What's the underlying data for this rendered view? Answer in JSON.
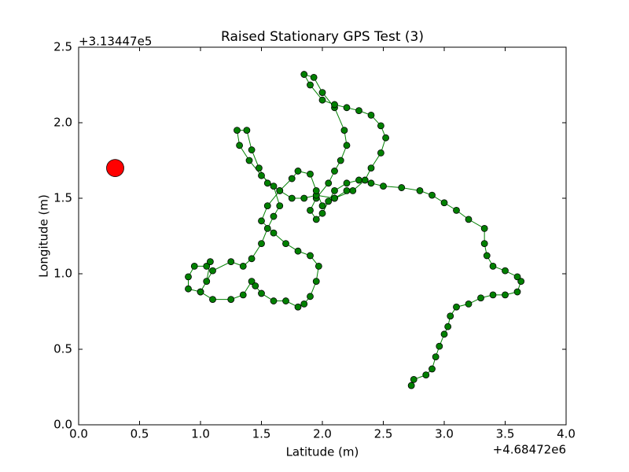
{
  "chart_data": {
    "type": "scatter",
    "title": "Raised Stationary GPS Test (3)",
    "x_label": "Latitude (m)",
    "y_label": "Longitude (m)",
    "x_offset_label": "+4.68472e6",
    "y_offset_label": "+3.13447e5",
    "xlim": [
      0,
      4
    ],
    "ylim": [
      0,
      2.5
    ],
    "xticks": [
      {
        "value": 0,
        "label": "0.0"
      },
      0.5,
      {
        "value": 1,
        "label": "1.0"
      },
      1.5,
      {
        "value": 2,
        "label": "2.0"
      },
      2.5,
      {
        "value": 3,
        "label": "3.0"
      },
      3.5,
      {
        "value": 4,
        "label": "4.0"
      }
    ],
    "yticks": [
      {
        "value": 0,
        "label": "0.0"
      },
      0.5,
      {
        "value": 1,
        "label": "1.0"
      },
      1.5,
      {
        "value": 2,
        "label": "2.0"
      },
      2.5
    ],
    "grid": false,
    "series": [
      {
        "color": "#008000",
        "line": true,
        "x": [
          2.73,
          2.75,
          2.85,
          2.9,
          2.93,
          2.96,
          3.0,
          3.03,
          3.05,
          3.1,
          3.2,
          3.3,
          3.4,
          3.5,
          3.6,
          3.63,
          3.6,
          3.5,
          3.4,
          3.35,
          3.33,
          3.33,
          3.2,
          3.1,
          3.0,
          2.9,
          2.8,
          2.65,
          2.5,
          2.4,
          2.3,
          2.2,
          2.1,
          2.05,
          2.0,
          1.95,
          1.9,
          1.95,
          2.05,
          2.1,
          2.15,
          2.2,
          2.18,
          2.1,
          2.0,
          1.93,
          1.85,
          1.9,
          2.0,
          2.1,
          2.2,
          2.3,
          2.4,
          2.48,
          2.52,
          2.48,
          2.4,
          2.35,
          2.25,
          2.1,
          1.95,
          1.85,
          1.75,
          1.65,
          1.55,
          1.48,
          1.42,
          1.38,
          1.3,
          1.32,
          1.4,
          1.5,
          1.6,
          1.65,
          1.6,
          1.55,
          1.5,
          1.42,
          1.35,
          1.25,
          1.1,
          1.0,
          0.9,
          0.9,
          0.95,
          1.05,
          1.08,
          1.05,
          1.0,
          1.1,
          1.25,
          1.35,
          1.42,
          1.45,
          1.5,
          1.6,
          1.7,
          1.8,
          1.85,
          1.9,
          1.95,
          1.97,
          1.9,
          1.8,
          1.7,
          1.6,
          1.5,
          1.55,
          1.65,
          1.75,
          1.8,
          1.9,
          1.95,
          2.0,
          2.1,
          2.2
        ],
        "y": [
          0.26,
          0.3,
          0.33,
          0.37,
          0.45,
          0.52,
          0.6,
          0.65,
          0.72,
          0.78,
          0.8,
          0.84,
          0.86,
          0.86,
          0.88,
          0.95,
          0.98,
          1.02,
          1.05,
          1.12,
          1.2,
          1.3,
          1.36,
          1.42,
          1.47,
          1.52,
          1.55,
          1.57,
          1.58,
          1.6,
          1.62,
          1.6,
          1.55,
          1.48,
          1.4,
          1.36,
          1.42,
          1.5,
          1.6,
          1.68,
          1.75,
          1.85,
          1.95,
          2.1,
          2.2,
          2.3,
          2.32,
          2.25,
          2.15,
          2.12,
          2.1,
          2.08,
          2.05,
          1.98,
          1.9,
          1.8,
          1.7,
          1.62,
          1.55,
          1.5,
          1.52,
          1.5,
          1.5,
          1.55,
          1.6,
          1.7,
          1.82,
          1.95,
          1.95,
          1.85,
          1.75,
          1.65,
          1.58,
          1.45,
          1.38,
          1.3,
          1.2,
          1.1,
          1.05,
          1.08,
          1.02,
          0.88,
          0.9,
          0.98,
          1.05,
          1.05,
          1.08,
          0.95,
          0.88,
          0.83,
          0.83,
          0.86,
          0.95,
          0.92,
          0.87,
          0.82,
          0.82,
          0.78,
          0.8,
          0.85,
          0.95,
          1.05,
          1.12,
          1.15,
          1.2,
          1.27,
          1.35,
          1.45,
          1.55,
          1.63,
          1.68,
          1.66,
          1.55,
          1.45,
          1.5,
          1.55
        ]
      },
      {
        "color": "#ff0000",
        "line": false,
        "x": [
          0.3
        ],
        "y": [
          1.7
        ]
      }
    ]
  }
}
